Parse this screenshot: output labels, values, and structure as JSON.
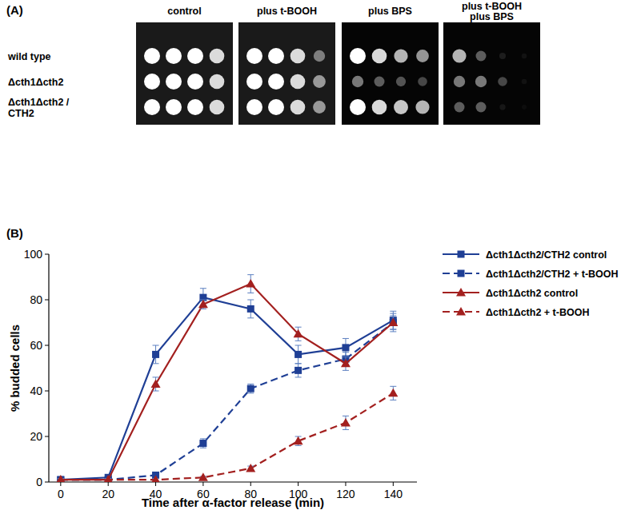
{
  "panel_a": {
    "label": "(A)",
    "conditions": [
      [
        "control"
      ],
      [
        "plus t-BOOH"
      ],
      [
        "plus BPS"
      ],
      [
        "plus t-BOOH",
        "plus BPS"
      ]
    ],
    "strains": [
      [
        "wild type"
      ],
      [
        "Δcth1Δcth2"
      ],
      [
        "Δcth1Δcth2 /",
        "CTH2"
      ]
    ],
    "growth": [
      [
        [
          1,
          1,
          1,
          0.9
        ],
        [
          1,
          1,
          1,
          0.9
        ],
        [
          1,
          1,
          1,
          0.9
        ]
      ],
      [
        [
          1,
          1,
          0.9,
          0.6
        ],
        [
          1,
          1,
          0.9,
          0.7
        ],
        [
          1,
          1,
          0.9,
          0.7
        ]
      ],
      [
        [
          1,
          0.9,
          0.8,
          0.7
        ],
        [
          0.6,
          0.5,
          0.45,
          0.4
        ],
        [
          1,
          0.9,
          0.85,
          0.8
        ]
      ],
      [
        [
          0.8,
          0.5,
          0.15,
          0.05
        ],
        [
          0.6,
          0.6,
          0.4,
          0.05
        ],
        [
          0.5,
          0.5,
          0.1,
          0
        ]
      ]
    ]
  },
  "chart_data": {
    "type": "line",
    "title": "(B)",
    "x_label": "Time after α-factor release (min)",
    "y_label": "% budded cells",
    "x": [
      0,
      20,
      40,
      60,
      80,
      100,
      120,
      140
    ],
    "xlim": [
      -5,
      150
    ],
    "xticks": [
      0,
      20,
      40,
      60,
      80,
      100,
      120,
      140
    ],
    "ylim": [
      0,
      100
    ],
    "yticks": [
      0,
      20,
      40,
      60,
      80,
      100
    ],
    "grid": false,
    "legend": "right",
    "series": [
      {
        "name": "Δcth1Δcth2/CTH2 control",
        "color": "#1f3f95",
        "marker": "square",
        "line_style": "solid",
        "values": [
          1,
          2,
          56,
          81,
          76,
          56,
          59,
          71
        ],
        "errors": [
          0.5,
          1,
          4,
          4,
          4,
          4,
          4,
          4
        ]
      },
      {
        "name": "Δcth1Δcth2/CTH2 + t-BOOH",
        "color": "#1f3f95",
        "marker": "square",
        "line_style": "dashed",
        "values": [
          1,
          1,
          3,
          17,
          41,
          49,
          54,
          70
        ],
        "errors": [
          0.5,
          0.5,
          0.5,
          2,
          2,
          3,
          3,
          3
        ]
      },
      {
        "name": "Δcth1Δcth2 control",
        "color": "#a3201f",
        "marker": "triangle",
        "line_style": "solid",
        "values": [
          1,
          1,
          43,
          78,
          87,
          65,
          52,
          70
        ],
        "errors": [
          0.5,
          0.5,
          3,
          2,
          4,
          3,
          3,
          4
        ]
      },
      {
        "name": "Δcth1Δcth2 + t-BOOH",
        "color": "#a3201f",
        "marker": "triangle",
        "line_style": "dashed",
        "values": [
          1,
          1,
          1,
          2,
          6,
          18,
          26,
          39
        ],
        "errors": [
          0.5,
          0.5,
          0.5,
          0.5,
          1,
          2,
          3,
          3
        ]
      }
    ]
  }
}
